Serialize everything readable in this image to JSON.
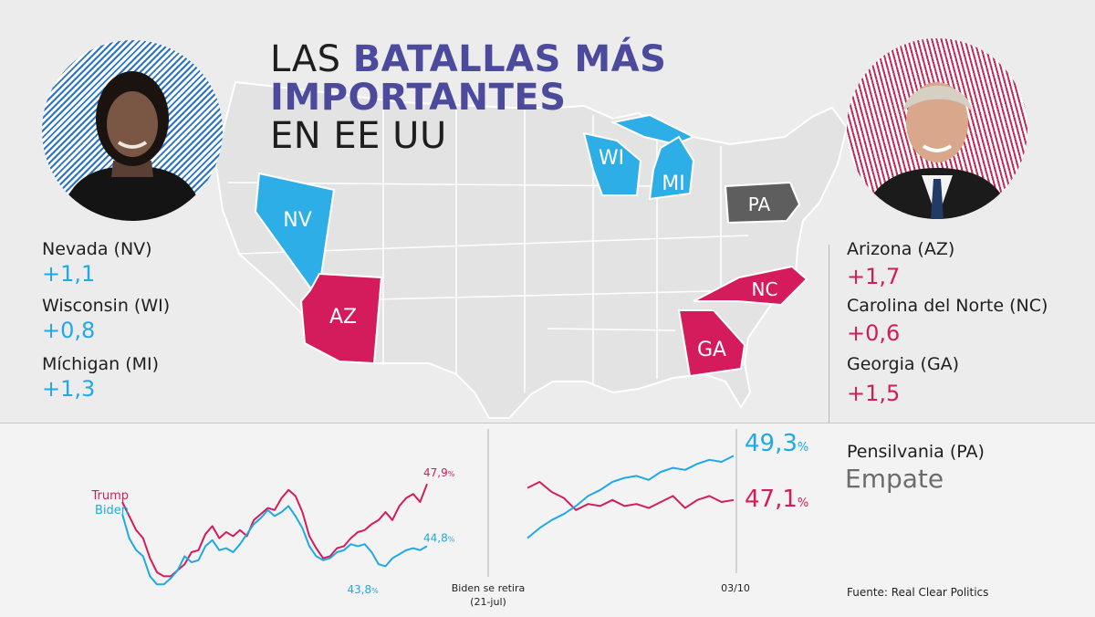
{
  "title": {
    "line1_plain": "LAS",
    "line1_accent": "BATALLAS MÁS",
    "line2_accent": "IMPORTANTES",
    "line3_plain": "EN EE UU"
  },
  "colors": {
    "dem": "#1fa9e6",
    "rep": "#d41c5d",
    "tie": "#5e5e5e",
    "title_accent": "#4b4a9c"
  },
  "map": {
    "states": [
      {
        "code": "NV",
        "party": "dem"
      },
      {
        "code": "WI",
        "party": "dem"
      },
      {
        "code": "MI",
        "party": "dem"
      },
      {
        "code": "PA",
        "party": "tie"
      },
      {
        "code": "AZ",
        "party": "rep"
      },
      {
        "code": "NC",
        "party": "rep"
      },
      {
        "code": "GA",
        "party": "rep"
      }
    ]
  },
  "left_stats": [
    {
      "name": "Nevada (NV)",
      "value": "+1,1"
    },
    {
      "name": "Wisconsin (WI)",
      "value": "+0,8"
    },
    {
      "name": "Míchigan (MI)",
      "value": "+1,3"
    }
  ],
  "right_stats": [
    {
      "name": "Arizona (AZ)",
      "value": "+1,7"
    },
    {
      "name": "Carolina del Norte (NC)",
      "value": "+0,6"
    },
    {
      "name": "Georgia (GA)",
      "value": "+1,5"
    }
  ],
  "tie_stat": {
    "name": "Pensilvania (PA)",
    "value": "Empate"
  },
  "source": "Fuente: Real Clear Politics",
  "chart_data": {
    "type": "line",
    "ylim": [
      42,
      51
    ],
    "series": [
      {
        "name": "Trump",
        "color": "#d41c5d"
      },
      {
        "name": "Biden",
        "color": "#1fa9e6"
      }
    ],
    "segments": [
      {
        "id": "before",
        "series_values": [
          [
            47.0,
            46.3,
            45.6,
            45.2,
            44.2,
            43.5,
            43.3,
            43.3,
            43.6,
            43.9,
            44.5,
            44.6,
            45.4,
            45.8,
            45.2,
            45.5,
            45.3,
            45.6,
            45.3,
            46.1,
            46.4,
            46.7,
            46.6,
            47.2,
            47.6,
            47.3,
            46.5,
            45.3,
            44.7,
            44.2,
            44.3,
            44.7,
            44.8,
            45.2,
            45.5,
            45.6,
            45.9,
            46.1,
            46.5,
            46.1,
            46.8,
            47.2,
            47.4,
            47.0,
            47.9
          ],
          [
            46.4,
            45.2,
            44.6,
            44.3,
            43.3,
            42.9,
            42.9,
            43.2,
            43.6,
            44.3,
            44.0,
            44.1,
            44.8,
            45.1,
            44.6,
            44.7,
            44.5,
            44.9,
            45.4,
            45.9,
            46.2,
            46.6,
            46.3,
            46.5,
            46.8,
            46.3,
            45.7,
            44.8,
            44.3,
            44.1,
            44.2,
            44.5,
            44.6,
            44.9,
            44.8,
            44.9,
            44.5,
            43.9,
            43.8,
            44.2,
            44.4,
            44.6,
            44.7,
            44.6,
            44.8
          ]
        ],
        "start_label": [
          "Trump",
          "Biden"
        ],
        "end_label": [
          "47,9%",
          "44,8%"
        ],
        "min_label": [
          null,
          "43,8%"
        ]
      },
      {
        "id": "after",
        "series_values": [
          [
            47.7,
            48.0,
            47.5,
            47.2,
            46.6,
            46.9,
            46.8,
            47.1,
            46.8,
            46.9,
            46.7,
            47.0,
            47.3,
            46.7,
            47.1,
            47.3,
            47.0,
            47.1
          ],
          [
            45.2,
            45.7,
            46.1,
            46.4,
            46.8,
            47.3,
            47.6,
            48.0,
            48.2,
            48.3,
            48.1,
            48.5,
            48.7,
            48.6,
            48.9,
            49.1,
            49.0,
            49.3
          ]
        ],
        "end_label": [
          "47,1%",
          "49,3%"
        ]
      }
    ],
    "events": [
      {
        "label_line1": "Biden se retira",
        "label_line2": "(21-jul)"
      },
      {
        "label_line1": "03/10"
      }
    ]
  }
}
